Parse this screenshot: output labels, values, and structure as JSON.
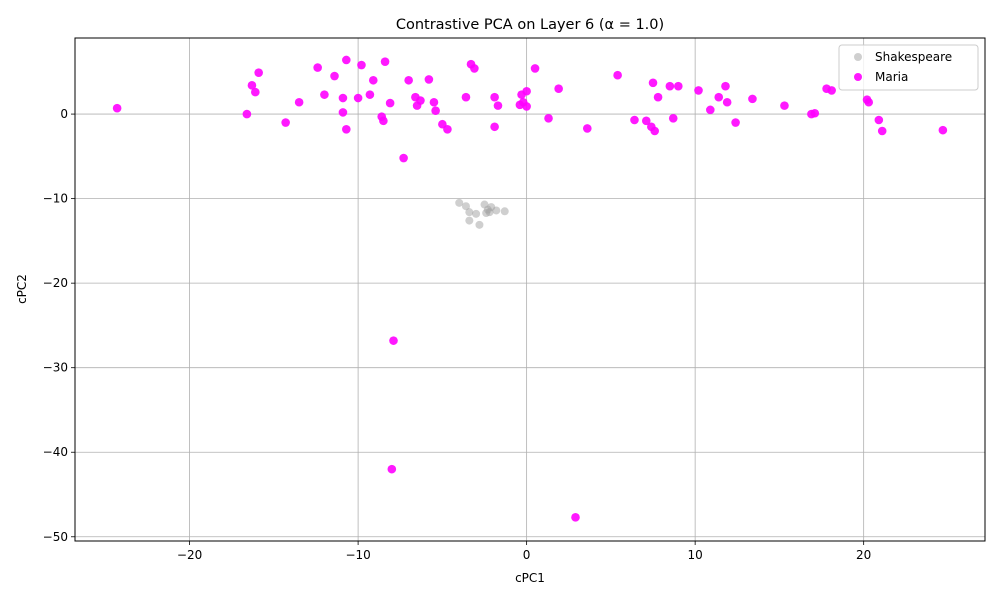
{
  "chart_data": {
    "type": "scatter",
    "title": "Contrastive PCA on Layer 6 (α = 1.0)",
    "xlabel": "cPC1",
    "ylabel": "cPC2",
    "xlim": [
      -26.8,
      27.2
    ],
    "ylim": [
      -50.5,
      9.0
    ],
    "xticks": [
      -20,
      -10,
      0,
      10,
      20
    ],
    "yticks": [
      0,
      -10,
      -20,
      -30,
      -40,
      -50
    ],
    "grid": true,
    "legend_position": "top-right",
    "series": [
      {
        "name": "Shakespeare",
        "color": "#a0a0a0",
        "points": [
          [
            -4.0,
            -10.5
          ],
          [
            -3.6,
            -10.9
          ],
          [
            -3.4,
            -11.6
          ],
          [
            -3.4,
            -12.6
          ],
          [
            -3.0,
            -11.8
          ],
          [
            -2.8,
            -13.1
          ],
          [
            -2.5,
            -10.7
          ],
          [
            -2.4,
            -11.7
          ],
          [
            -2.3,
            -11.3
          ],
          [
            -2.2,
            -11.6
          ],
          [
            -2.1,
            -11.0
          ],
          [
            -1.8,
            -11.4
          ],
          [
            -1.3,
            -11.5
          ]
        ]
      },
      {
        "name": "Maria",
        "color": "#ff00ff",
        "points": [
          [
            -24.3,
            0.7
          ],
          [
            -16.6,
            0.0
          ],
          [
            -16.3,
            3.4
          ],
          [
            -16.1,
            2.6
          ],
          [
            -15.9,
            4.9
          ],
          [
            -14.3,
            -1.0
          ],
          [
            -13.5,
            1.4
          ],
          [
            -12.4,
            5.5
          ],
          [
            -12.0,
            2.3
          ],
          [
            -11.4,
            4.5
          ],
          [
            -10.9,
            1.9
          ],
          [
            -10.9,
            0.2
          ],
          [
            -10.7,
            6.4
          ],
          [
            -10.7,
            -1.8
          ],
          [
            -10.0,
            1.9
          ],
          [
            -9.8,
            5.8
          ],
          [
            -9.3,
            2.3
          ],
          [
            -9.1,
            4.0
          ],
          [
            -8.6,
            -0.3
          ],
          [
            -8.5,
            -0.8
          ],
          [
            -8.4,
            6.2
          ],
          [
            -8.1,
            1.3
          ],
          [
            -7.9,
            -26.8
          ],
          [
            -8.0,
            -42.0
          ],
          [
            -7.3,
            -5.2
          ],
          [
            -7.0,
            4.0
          ],
          [
            -6.6,
            2.0
          ],
          [
            -6.5,
            1.0
          ],
          [
            -6.3,
            1.6
          ],
          [
            -5.8,
            4.1
          ],
          [
            -5.5,
            1.4
          ],
          [
            -5.4,
            0.4
          ],
          [
            -5.0,
            -1.2
          ],
          [
            -4.7,
            -1.8
          ],
          [
            -3.6,
            2.0
          ],
          [
            -3.3,
            5.9
          ],
          [
            -3.1,
            5.4
          ],
          [
            -1.9,
            2.0
          ],
          [
            -1.9,
            -1.5
          ],
          [
            -1.7,
            1.0
          ],
          [
            -0.4,
            1.1
          ],
          [
            -0.3,
            2.3
          ],
          [
            -0.2,
            1.4
          ],
          [
            0.0,
            2.7
          ],
          [
            0.0,
            0.9
          ],
          [
            0.5,
            5.4
          ],
          [
            1.3,
            -0.5
          ],
          [
            1.9,
            3.0
          ],
          [
            2.9,
            -47.7
          ],
          [
            3.6,
            -1.7
          ],
          [
            5.4,
            4.6
          ],
          [
            6.4,
            -0.7
          ],
          [
            7.1,
            -0.8
          ],
          [
            7.4,
            -1.5
          ],
          [
            7.5,
            3.7
          ],
          [
            7.6,
            -2.0
          ],
          [
            7.8,
            2.0
          ],
          [
            8.5,
            3.3
          ],
          [
            8.7,
            -0.5
          ],
          [
            9.0,
            3.3
          ],
          [
            10.2,
            2.8
          ],
          [
            10.9,
            0.5
          ],
          [
            11.4,
            2.0
          ],
          [
            11.8,
            3.3
          ],
          [
            11.9,
            1.4
          ],
          [
            12.4,
            -1.0
          ],
          [
            13.4,
            1.8
          ],
          [
            15.3,
            1.0
          ],
          [
            16.9,
            0.0
          ],
          [
            17.1,
            0.1
          ],
          [
            17.8,
            3.0
          ],
          [
            18.1,
            2.8
          ],
          [
            20.2,
            1.7
          ],
          [
            20.3,
            1.4
          ],
          [
            20.9,
            -0.7
          ],
          [
            21.1,
            -2.0
          ],
          [
            24.7,
            -1.9
          ]
        ]
      }
    ]
  }
}
